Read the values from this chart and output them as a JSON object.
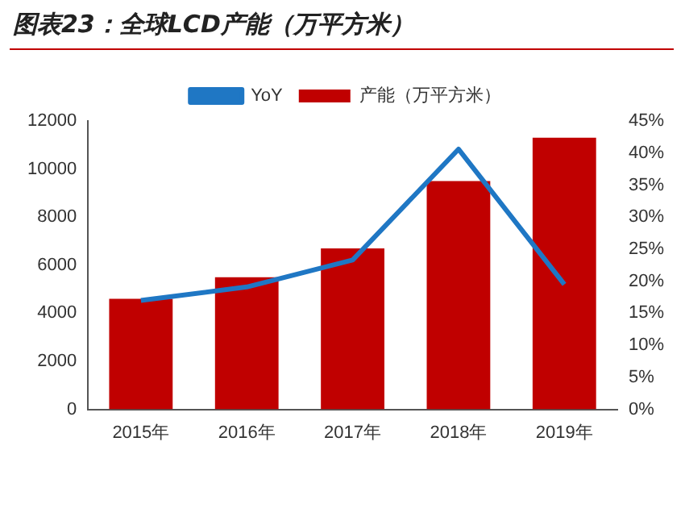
{
  "chart_data": {
    "type": "bar",
    "title": "图表23：全球LCD产能（万平方米）",
    "categories": [
      "2015年",
      "2016年",
      "2017年",
      "2018年",
      "2019年"
    ],
    "series": [
      {
        "name": "产能（万平方米）",
        "color": "#c00000",
        "values": [
          4600,
          5500,
          6700,
          9500,
          11300
        ]
      },
      {
        "name": "YoY",
        "type": "line",
        "axis": "y2",
        "color": "#1f77c4",
        "values": [
          17.0,
          19.1,
          23.3,
          40.6,
          19.5
        ]
      }
    ],
    "ylim": [
      0,
      12000
    ],
    "yticks": [
      0,
      2000,
      4000,
      6000,
      8000,
      10000,
      12000
    ],
    "y2lim": [
      0,
      45
    ],
    "y2ticks": [
      {
        "value": 0,
        "label": "0%"
      },
      {
        "value": 5,
        "label": "5%"
      },
      {
        "value": 10,
        "label": "10%"
      },
      {
        "value": 15,
        "label": "15%"
      },
      {
        "value": 20,
        "label": "20%"
      },
      {
        "value": 25,
        "label": "25%"
      },
      {
        "value": 30,
        "label": "30%"
      },
      {
        "value": 35,
        "label": "35%"
      },
      {
        "value": 40,
        "label": "40%"
      },
      {
        "value": 45,
        "label": "45%"
      }
    ],
    "grid": false,
    "legend": "top",
    "marker": "none"
  }
}
